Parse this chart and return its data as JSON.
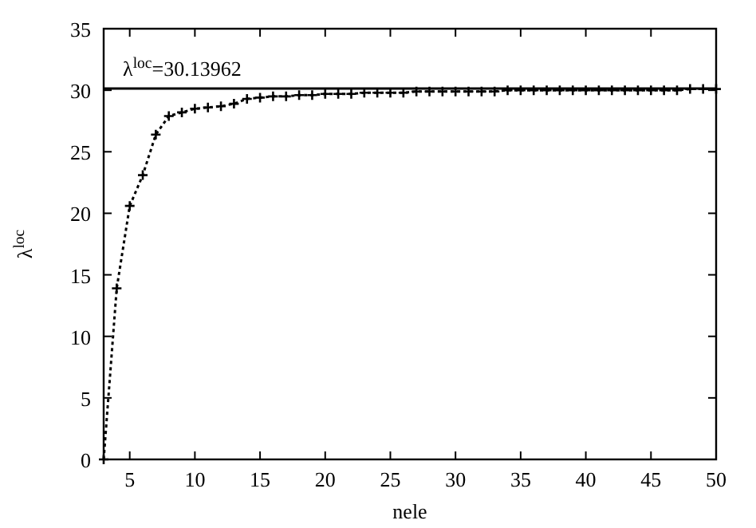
{
  "chart_data": {
    "type": "line",
    "xlabel": "nele",
    "ylabel": "λ$^{loc}$",
    "x": [
      3,
      4,
      5,
      6,
      7,
      8,
      9,
      10,
      11,
      12,
      13,
      14,
      15,
      16,
      17,
      18,
      19,
      20,
      21,
      22,
      23,
      24,
      25,
      26,
      27,
      28,
      29,
      30,
      31,
      32,
      33,
      34,
      35,
      36,
      37,
      38,
      39,
      40,
      41,
      42,
      43,
      44,
      45,
      46,
      47,
      48,
      49,
      50
    ],
    "series": [
      {
        "color": "#000000",
        "values": [
          0,
          13.9,
          20.6,
          23.1,
          26.4,
          27.9,
          28.2,
          28.5,
          28.6,
          28.7,
          28.9,
          29.3,
          29.4,
          29.5,
          29.5,
          29.6,
          29.6,
          29.7,
          29.7,
          29.7,
          29.8,
          29.8,
          29.8,
          29.8,
          29.9,
          29.9,
          29.9,
          29.9,
          29.9,
          29.9,
          29.9,
          30.0,
          30.0,
          30.0,
          30.0,
          30.0,
          30.0,
          30.0,
          30.0,
          30.0,
          30.0,
          30.0,
          30.0,
          30.0,
          30.0,
          30.1,
          30.1,
          30.1
        ]
      }
    ],
    "xlim": [
      3,
      50
    ],
    "ylim": [
      0,
      35
    ],
    "xticks": [
      5,
      10,
      15,
      20,
      25,
      30,
      35,
      40,
      45,
      50
    ],
    "yticks": [
      0,
      5,
      10,
      15,
      20,
      25,
      30,
      35
    ],
    "ref_lines": [
      {
        "axis": "y",
        "value": 30.13962,
        "label": "λ$^{loc}$=30.13962",
        "color": "#000000",
        "line_style": "solid"
      }
    ],
    "marker": "cross",
    "line_style": "dotted",
    "grid": false
  }
}
